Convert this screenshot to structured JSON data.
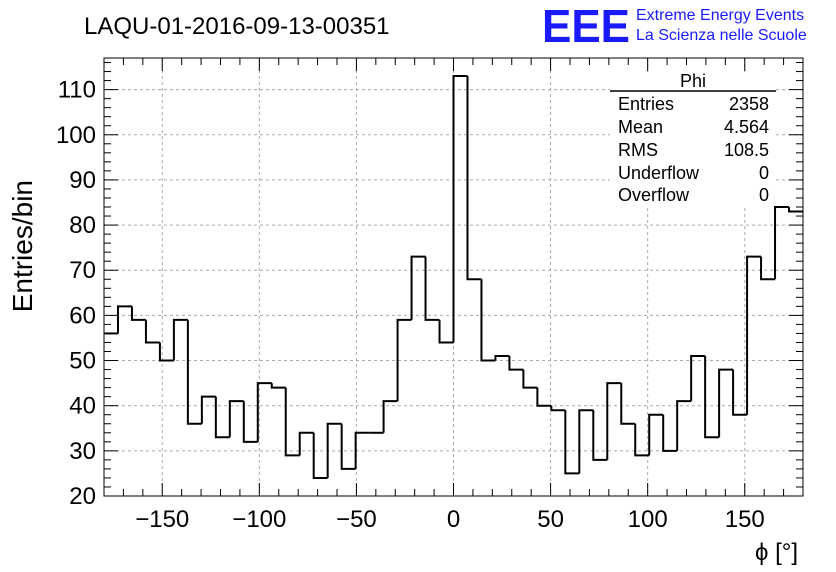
{
  "title": "LAQU-01-2016-09-13-00351",
  "logo": {
    "letters": "EEE",
    "line1": "Extreme Energy Events",
    "line2": "La Scienza nelle Scuole",
    "color": "#1a1aff"
  },
  "stats": {
    "name": "Phi",
    "rows": [
      {
        "label": "Entries",
        "value": "2358"
      },
      {
        "label": "Mean",
        "value": "4.564"
      },
      {
        "label": "RMS",
        "value": "108.5"
      },
      {
        "label": "Underflow",
        "value": "0"
      },
      {
        "label": "Overflow",
        "value": "0"
      }
    ]
  },
  "chart_data": {
    "type": "histogram",
    "xlabel": "ϕ [°]",
    "ylabel": "Entries/bin",
    "xlim": [
      -180,
      180
    ],
    "ylim": [
      20,
      117
    ],
    "grid": true,
    "line_color": "#000000",
    "bin_edges_start": -180,
    "bin_width": 7.2,
    "values": [
      56,
      62,
      59,
      54,
      50,
      59,
      36,
      42,
      33,
      41,
      32,
      45,
      44,
      29,
      34,
      24,
      36,
      26,
      34,
      34,
      41,
      59,
      73,
      59,
      54,
      113,
      68,
      50,
      51,
      48,
      44,
      40,
      39,
      25,
      39,
      28,
      45,
      36,
      29,
      38,
      30,
      41,
      51,
      33,
      48,
      38,
      73,
      68,
      84,
      83
    ],
    "xticks": [
      -150,
      -100,
      -50,
      0,
      50,
      100,
      150
    ],
    "xtick_labels": [
      "−150",
      "−100",
      "−50",
      "0",
      "50",
      "100",
      "150"
    ],
    "yticks": [
      20,
      30,
      40,
      50,
      60,
      70,
      80,
      90,
      100,
      110
    ],
    "ytick_labels": [
      "20",
      "30",
      "40",
      "50",
      "60",
      "70",
      "80",
      "90",
      "100",
      "110"
    ]
  }
}
